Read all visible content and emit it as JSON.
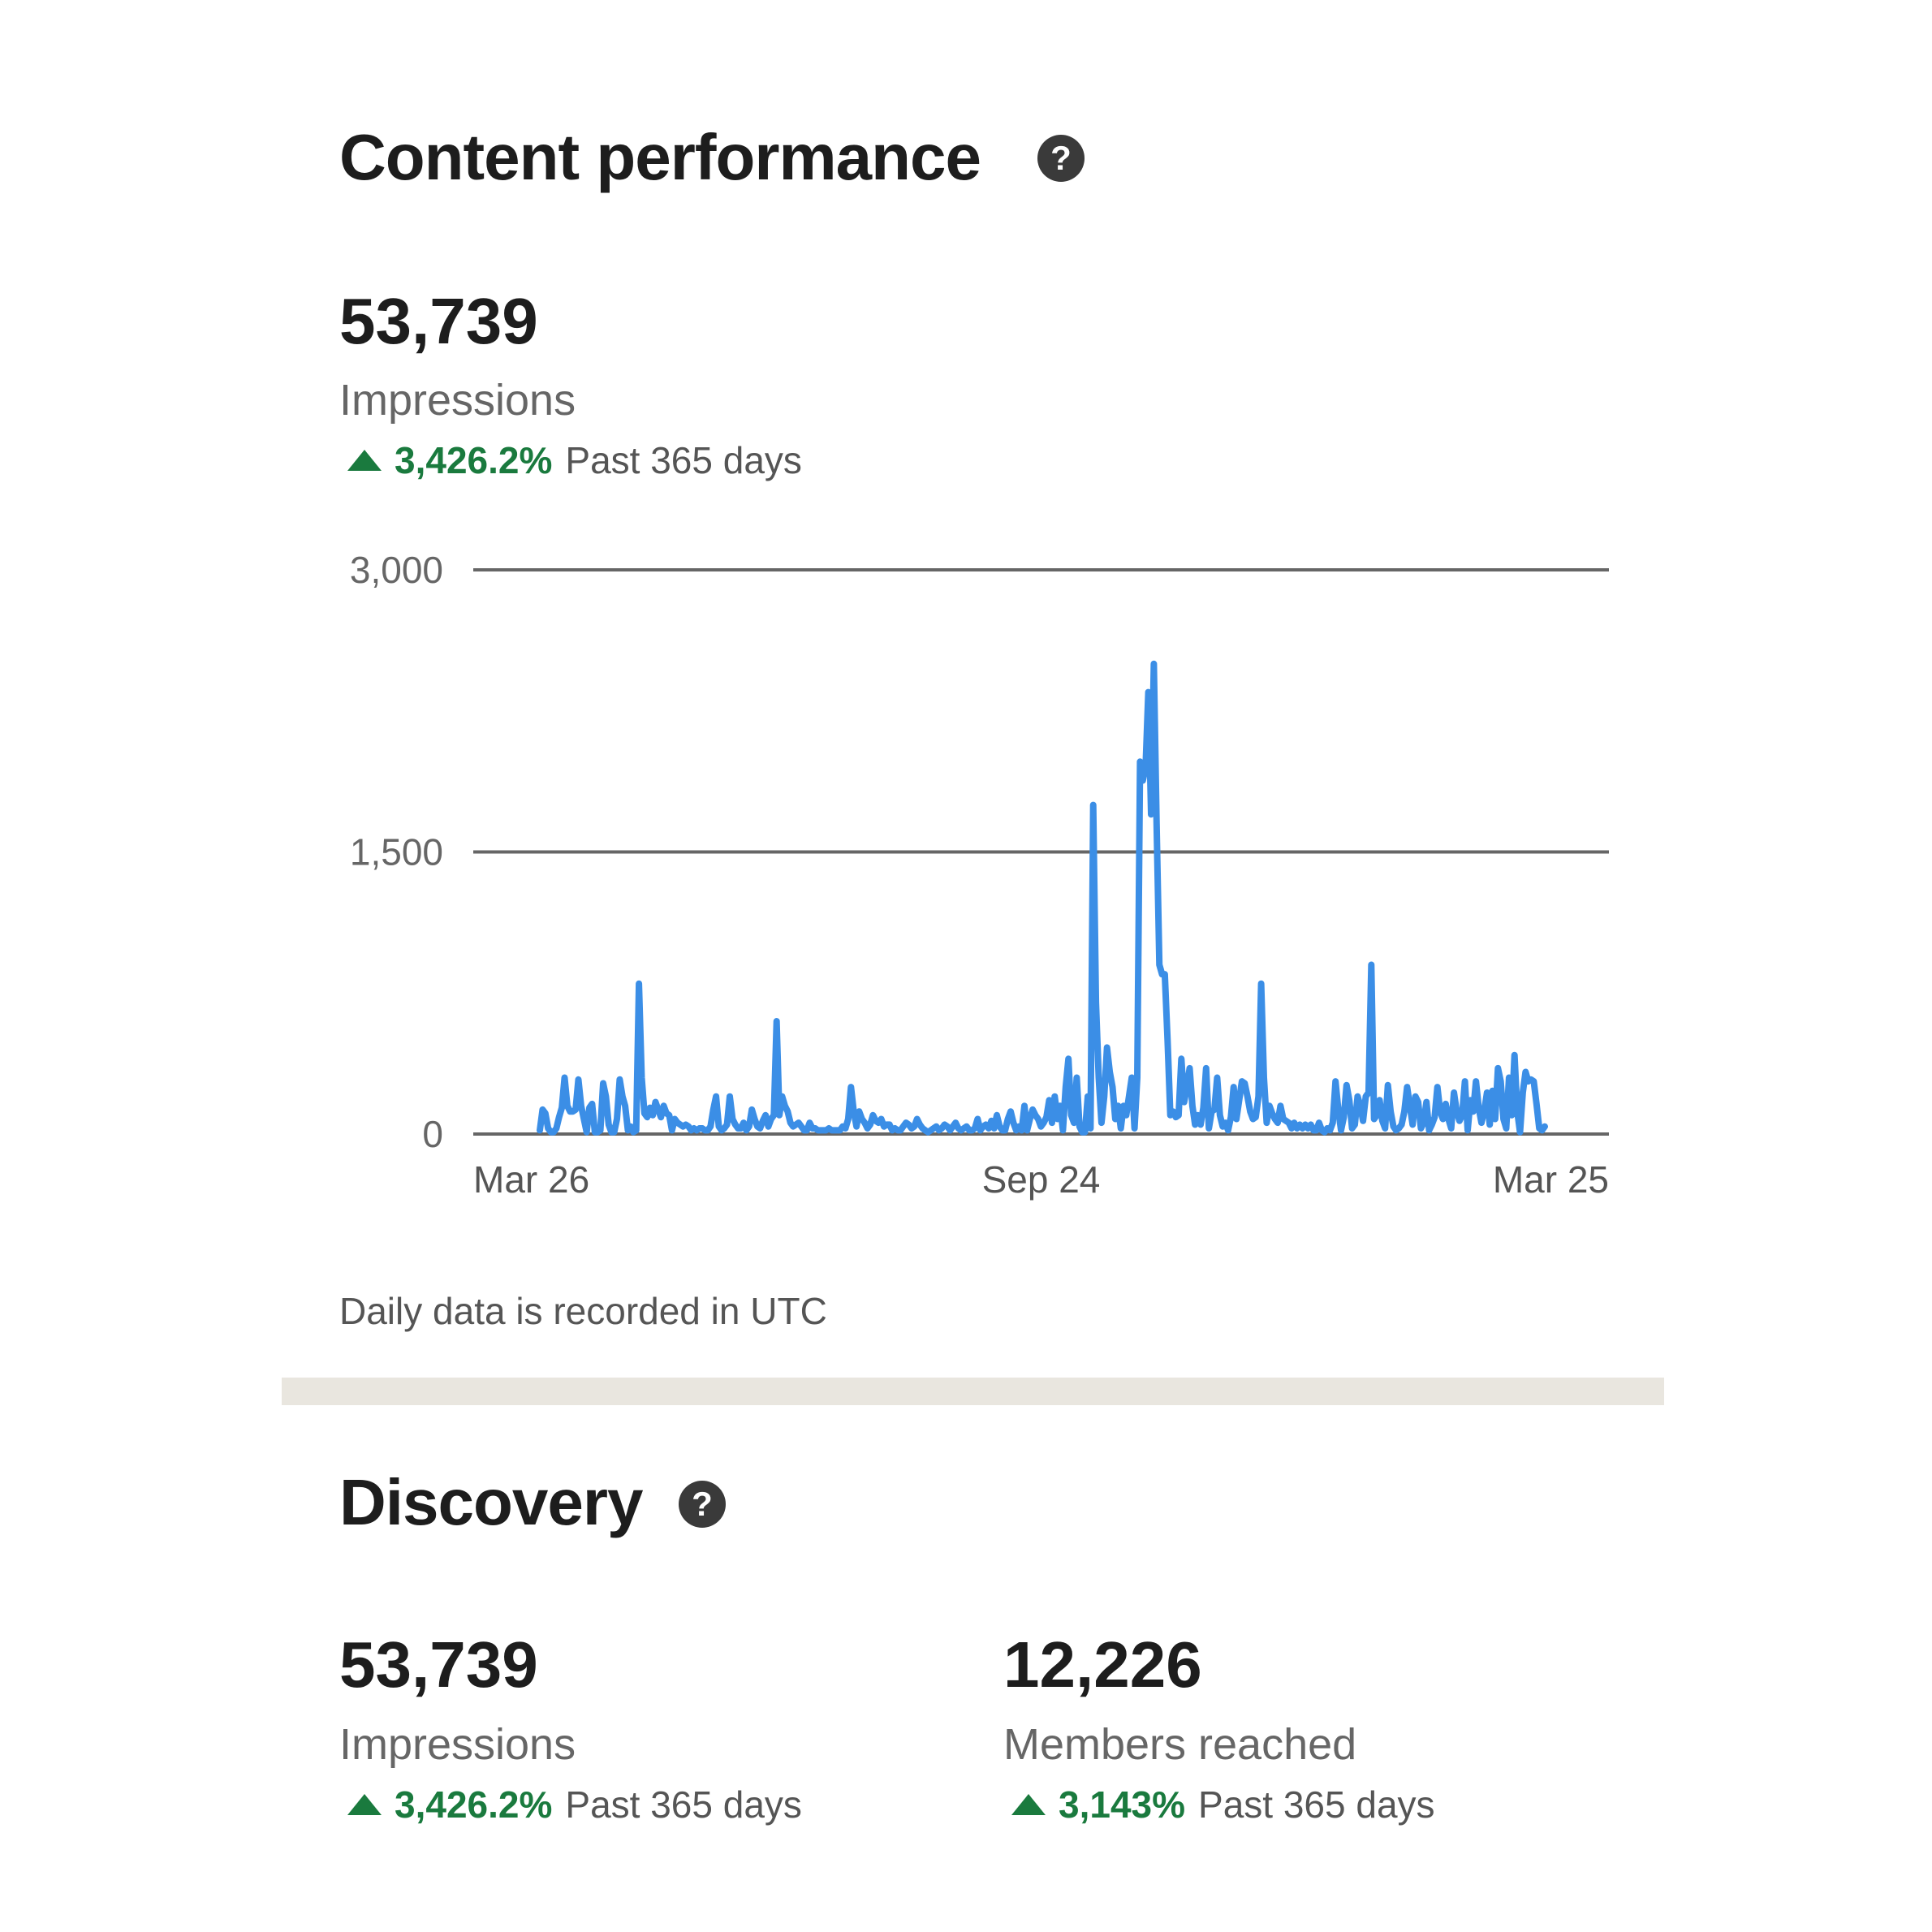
{
  "content_performance": {
    "title": "Content performance",
    "help_icon": "question-circle-icon",
    "metric": {
      "value": "53,739",
      "label": "Impressions",
      "trend_icon": "triangle-up-icon",
      "change": "3,426.2%",
      "period": "Past 365 days"
    },
    "footnote": "Daily data is recorded in UTC"
  },
  "discovery": {
    "title": "Discovery",
    "help_icon": "question-circle-icon",
    "metrics": [
      {
        "value": "53,739",
        "label": "Impressions",
        "change": "3,426.2%",
        "period": "Past 365 days"
      },
      {
        "value": "12,226",
        "label": "Members reached",
        "change": "3,143%",
        "period": "Past 365 days"
      }
    ]
  },
  "colors": {
    "line": "#3b8ee6",
    "positive": "#1a7a3e",
    "grid": "#666666",
    "divider": "#e9e6df"
  },
  "chart_data": {
    "type": "line",
    "title": "",
    "xlabel": "",
    "ylabel": "",
    "ylim": [
      0,
      3000
    ],
    "yticks": [
      0,
      1500,
      3000
    ],
    "ytick_labels": [
      "0",
      "1,500",
      "3,000"
    ],
    "xticks": [
      "Mar 26",
      "Sep 24",
      "Mar 25"
    ],
    "grid": true,
    "series": [
      {
        "x_start": "Mar 26",
        "x_end": "Mar 25",
        "values": [
          20,
          130,
          110,
          30,
          10,
          10,
          30,
          90,
          140,
          300,
          150,
          120,
          120,
          130,
          290,
          150,
          80,
          10,
          140,
          160,
          10,
          10,
          20,
          270,
          200,
          50,
          10,
          10,
          80,
          290,
          200,
          150,
          20,
          40,
          10,
          20,
          800,
          300,
          110,
          90,
          140,
          100,
          170,
          130,
          90,
          150,
          110,
          100,
          20,
          80,
          60,
          50,
          40,
          50,
          40,
          20,
          30,
          20,
          30,
          30,
          20,
          20,
          40,
          130,
          200,
          40,
          20,
          30,
          50,
          200,
          80,
          50,
          30,
          30,
          60,
          20,
          40,
          130,
          80,
          40,
          30,
          70,
          100,
          40,
          80,
          100,
          600,
          100,
          200,
          150,
          120,
          60,
          40,
          50,
          60,
          40,
          20,
          20,
          60,
          30,
          30,
          20,
          20,
          20,
          20,
          30,
          20,
          20,
          20,
          20,
          40,
          30,
          80,
          250,
          120,
          40,
          120,
          80,
          60,
          30,
          50,
          100,
          70,
          60,
          80,
          40,
          50,
          50,
          20,
          30,
          20,
          20,
          40,
          60,
          50,
          30,
          40,
          80,
          50,
          30,
          20,
          10,
          20,
          30,
          40,
          20,
          30,
          50,
          40,
          20,
          40,
          60,
          30,
          20,
          30,
          40,
          20,
          20,
          30,
          80,
          20,
          40,
          50,
          30,
          70,
          30,
          100,
          40,
          20,
          20,
          80,
          120,
          60,
          20,
          40,
          20,
          150,
          20,
          80,
          130,
          100,
          80,
          40,
          60,
          90,
          180,
          60,
          200,
          80,
          150,
          20,
          250,
          400,
          100,
          60,
          300,
          40,
          10,
          10,
          200,
          30,
          1750,
          700,
          300,
          60,
          200,
          460,
          330,
          250,
          80,
          150,
          30,
          150,
          100,
          200,
          300,
          30,
          300,
          1980,
          1880,
          1950,
          2350,
          1700,
          2500,
          1650,
          900,
          850,
          850,
          500,
          100,
          120,
          90,
          100,
          400,
          170,
          250,
          350,
          150,
          50,
          100,
          50,
          140,
          350,
          30,
          120,
          130,
          300,
          100,
          40,
          60,
          20,
          90,
          250,
          80,
          180,
          280,
          270,
          200,
          120,
          80,
          90,
          200,
          800,
          300,
          60,
          150,
          110,
          80,
          60,
          150,
          80,
          70,
          60,
          30,
          60,
          30,
          50,
          30,
          50,
          30,
          50,
          20,
          20,
          60,
          20,
          10,
          30,
          20,
          60,
          280,
          130,
          20,
          90,
          260,
          180,
          30,
          50,
          200,
          150,
          70,
          200,
          220,
          900,
          80,
          100,
          180,
          70,
          30,
          260,
          120,
          40,
          20,
          30,
          50,
          120,
          250,
          150,
          50,
          200,
          170,
          30,
          60,
          170,
          20,
          50,
          90,
          250,
          120,
          80,
          160,
          80,
          30,
          220,
          120,
          70,
          100,
          280,
          20,
          180,
          120,
          280,
          140,
          60,
          120,
          220,
          50,
          230,
          80,
          350,
          280,
          80,
          30,
          300,
          100,
          420,
          120,
          10,
          220,
          330,
          280,
          290,
          280,
          160,
          30,
          20,
          40
        ]
      }
    ]
  }
}
